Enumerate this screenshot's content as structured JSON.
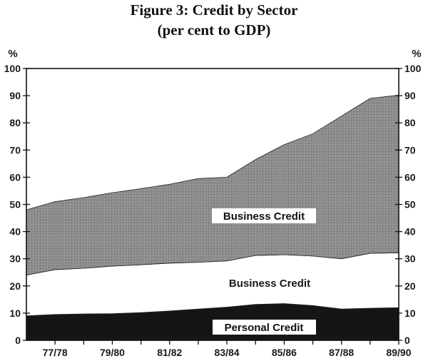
{
  "chart_data": {
    "type": "area",
    "title": "Figure 3: Credit by Sector",
    "subtitle": "(per cent to GDP)",
    "left_unit": "%",
    "right_unit": "%",
    "ylim": [
      0,
      100
    ],
    "yticks": [
      "0",
      "10",
      "20",
      "30",
      "40",
      "50",
      "60",
      "70",
      "80",
      "90",
      "100"
    ],
    "grid": false,
    "x_tick_labels": [
      "77/78",
      "79/80",
      "81/82",
      "83/84",
      "85/86",
      "87/88",
      "89/90"
    ],
    "x": [
      76.5,
      77.5,
      78.5,
      79.5,
      80.5,
      81.5,
      82.5,
      83.5,
      84.5,
      85.5,
      86.5,
      87.5,
      88.5,
      89.5
    ],
    "stack_layers": [
      {
        "label": "Personal Credit",
        "color": "#151515",
        "values": [
          9,
          9.5,
          9.7,
          9.8,
          10.2,
          10.8,
          11.5,
          12.2,
          13.2,
          13.5,
          12.8,
          11.5,
          11.8,
          12
        ]
      },
      {
        "label": "Business Credit",
        "color": "#ffffff",
        "values": [
          15,
          16.5,
          16.8,
          17.5,
          17.6,
          17.6,
          17.2,
          17,
          18,
          18,
          18.2,
          18.5,
          20.2,
          20.2
        ]
      },
      {
        "label": "Business Credit",
        "color": "#8d8d8d",
        "values": [
          24,
          25,
          26,
          27,
          28,
          29,
          30.8,
          30.8,
          35.3,
          40.5,
          45,
          52.5,
          57,
          58
        ]
      }
    ],
    "area_labels": [
      "Business Credit",
      "Business Credit",
      "Personal Credit"
    ]
  }
}
